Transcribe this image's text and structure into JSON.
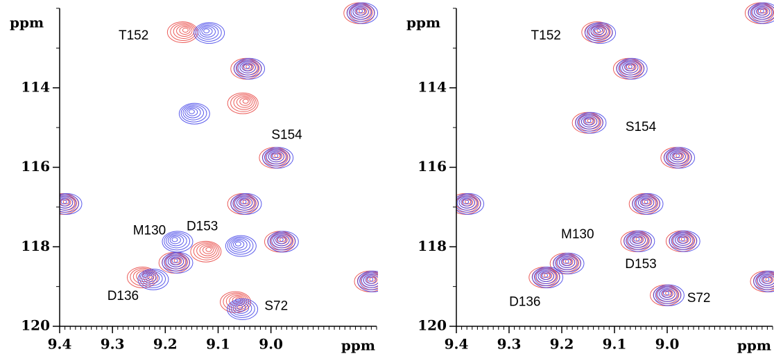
{
  "chart_data": [
    {
      "type": "contour",
      "x_label": "ppm",
      "y_label": "ppm",
      "xlim": [
        9.4,
        8.8
      ],
      "ylim": [
        120,
        112
      ],
      "xticks": [
        9.4,
        9.3,
        9.2,
        9.1,
        {
          "value": 9.0,
          "label": "9.0"
        }
      ],
      "yticks": [
        114,
        116,
        118,
        120
      ],
      "series": [
        {
          "color": "#e8403c",
          "x": [
            9.164,
            8.83,
            9.044,
            9.05,
            8.99,
            9.39,
            9.05,
            8.98,
            9.12,
            9.18,
            9.24,
            9.064,
            8.81
          ],
          "values": [
            112.58,
            112.1,
            113.5,
            114.37,
            115.74,
            116.9,
            116.9,
            117.85,
            118.1,
            118.38,
            118.75,
            119.37,
            118.85
          ]
        },
        {
          "color": "#3c3ce8",
          "x": [
            9.12,
            8.83,
            9.044,
            9.148,
            8.99,
            9.39,
            9.05,
            8.98,
            9.18,
            9.06,
            9.18,
            9.226,
            9.057,
            8.81
          ],
          "values": [
            112.6,
            112.1,
            113.5,
            114.63,
            115.74,
            116.9,
            116.9,
            117.85,
            117.85,
            117.96,
            118.38,
            118.8,
            119.55,
            118.85
          ]
        }
      ],
      "annotations": [
        {
          "text": "T152",
          "x": 9.26,
          "y": 112.7
        },
        {
          "text": "S154",
          "x": 8.97,
          "y": 115.2
        },
        {
          "text": "M130",
          "x": 9.23,
          "y": 117.6
        },
        {
          "text": "D153",
          "x": 9.13,
          "y": 117.5
        },
        {
          "text": "D136",
          "x": 9.28,
          "y": 119.25
        },
        {
          "text": "S72",
          "x": 8.99,
          "y": 119.5
        }
      ]
    },
    {
      "type": "contour",
      "x_label": "ppm",
      "y_label": "ppm",
      "xlim": [
        9.4,
        8.8
      ],
      "ylim": [
        120,
        112
      ],
      "xticks": [
        9.4,
        9.3,
        9.2,
        9.1,
        {
          "value": 9.0,
          "label": "9.0"
        }
      ],
      "yticks": [
        114,
        116,
        118,
        120
      ],
      "series": [
        {
          "color": "#e8403c",
          "x": [
            9.13,
            8.82,
            9.07,
            9.148,
            8.98,
            9.38,
            9.04,
            9.056,
            8.97,
            9.19,
            9.23,
            9.0,
            8.81
          ],
          "values": [
            112.58,
            112.1,
            113.5,
            114.86,
            115.74,
            116.9,
            116.9,
            117.84,
            117.84,
            118.4,
            118.75,
            119.2,
            118.85
          ]
        },
        {
          "color": "#3c3ce8",
          "x": [
            9.13,
            8.82,
            9.07,
            9.148,
            8.98,
            9.38,
            9.04,
            9.056,
            8.97,
            9.19,
            9.23,
            9.0,
            8.81
          ],
          "values": [
            112.6,
            112.1,
            113.5,
            114.86,
            115.74,
            116.9,
            116.9,
            117.84,
            117.84,
            118.4,
            118.75,
            119.2,
            118.85
          ]
        }
      ],
      "annotations": [
        {
          "text": "T152",
          "x": 9.23,
          "y": 112.7
        },
        {
          "text": "S154",
          "x": 9.05,
          "y": 115.0
        },
        {
          "text": "M130",
          "x": 9.17,
          "y": 117.7
        },
        {
          "text": "D153",
          "x": 9.05,
          "y": 118.45
        },
        {
          "text": "D136",
          "x": 9.27,
          "y": 119.4
        },
        {
          "text": "S72",
          "x": 8.94,
          "y": 119.3
        }
      ]
    }
  ]
}
